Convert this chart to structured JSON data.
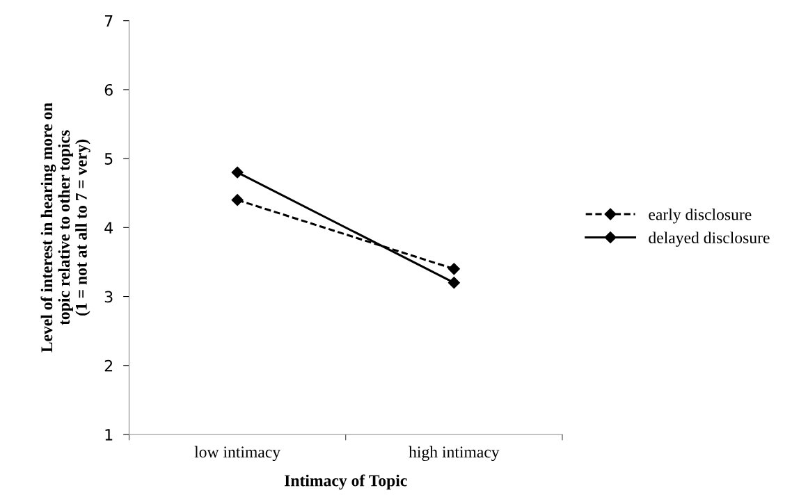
{
  "chart_data": {
    "type": "line",
    "xlabel": "Intimacy of Topic",
    "ylabel": "Level of interest in hearing more on\ntopic relative to other topics\n(1 = not at all to 7 = very)",
    "categories": [
      "low intimacy",
      "high intimacy"
    ],
    "series": [
      {
        "name": "early disclosure",
        "color": "#000000",
        "line_style": "dashed",
        "values": [
          4.4,
          3.4
        ]
      },
      {
        "name": "delayed disclosure",
        "color": "#000000",
        "line_style": "solid",
        "values": [
          4.8,
          3.2
        ]
      }
    ],
    "ylim": [
      1,
      7
    ],
    "yticks": [
      1,
      2,
      3,
      4,
      5,
      6,
      7
    ],
    "grid": false,
    "legend": "right",
    "marker": "diamond"
  }
}
